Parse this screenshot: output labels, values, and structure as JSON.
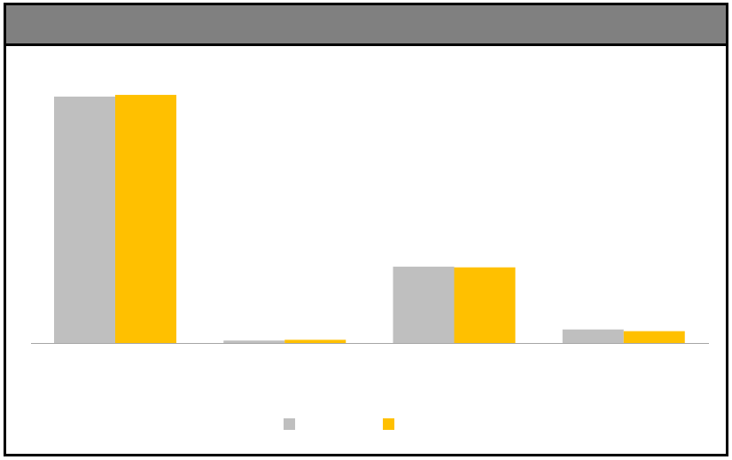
{
  "header": {
    "title": "",
    "background_color": "#808080"
  },
  "chart_data": {
    "type": "bar",
    "title": "",
    "xlabel": "",
    "ylabel": "",
    "categories": [
      "",
      "",
      "",
      ""
    ],
    "series": [
      {
        "values": [
          100,
          1,
          31,
          5.5
        ],
        "color": "#BFBFBF"
      },
      {
        "values": [
          100.7,
          1.3,
          30.7,
          4.8
        ],
        "color": "#FFC000"
      }
    ],
    "ylim": [
      0,
      100
    ],
    "grid": false,
    "legend": "bottom-center"
  }
}
